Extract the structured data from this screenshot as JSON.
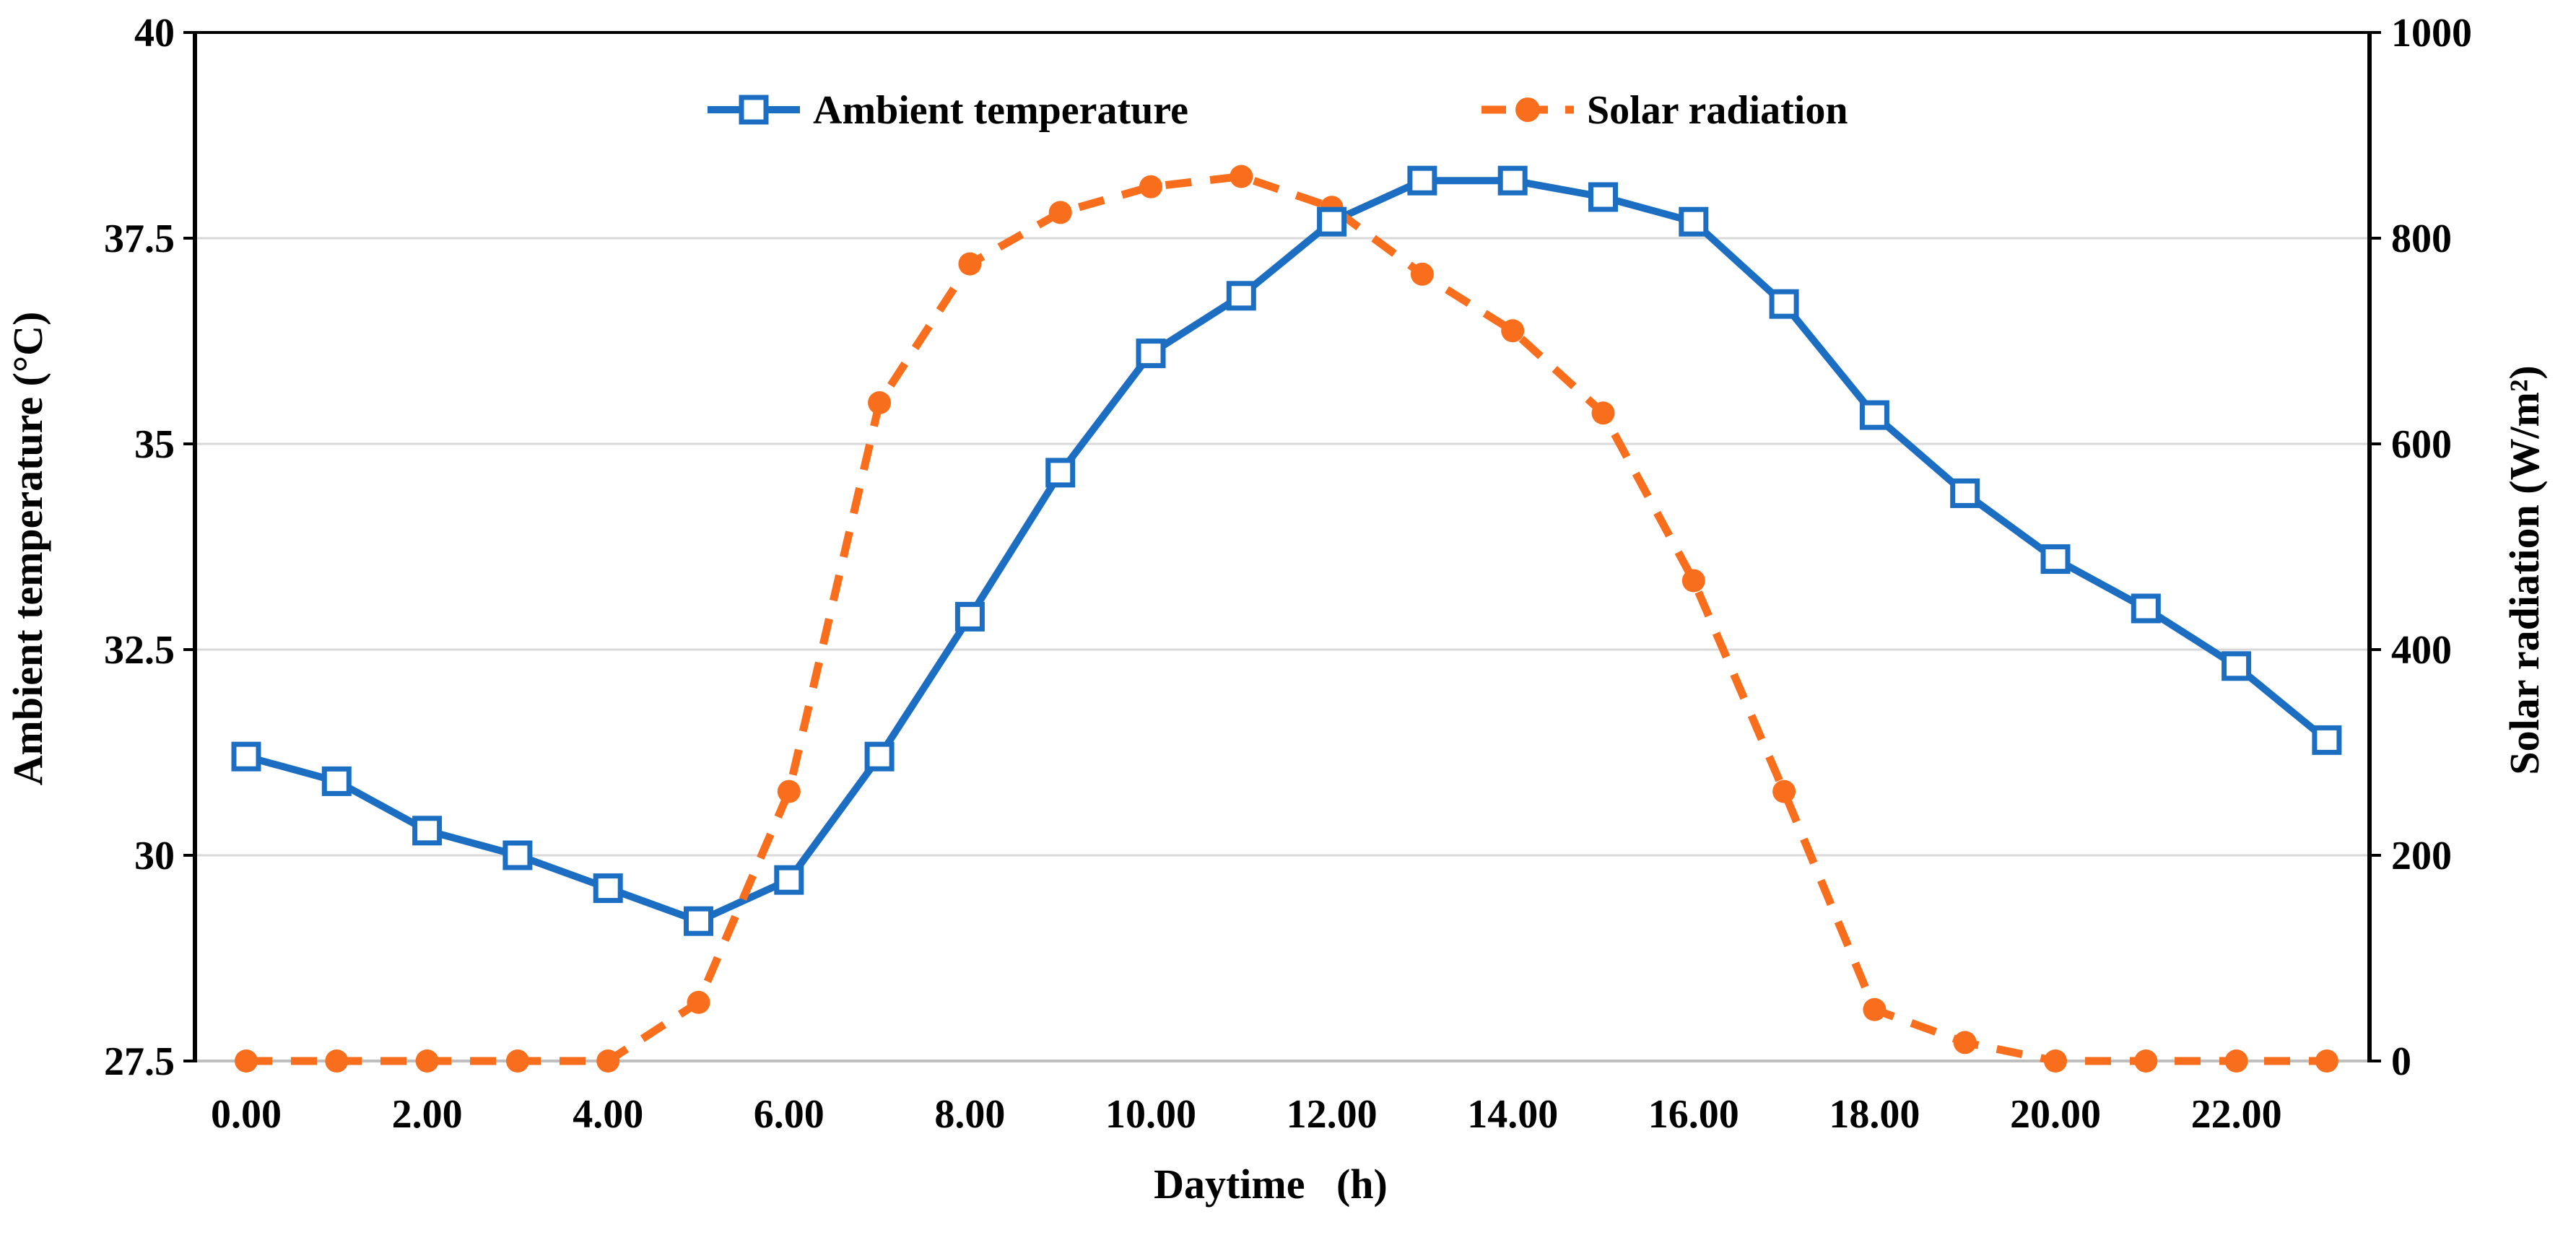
{
  "chart_data": {
    "type": "line",
    "title": "",
    "xlabel": "Daytime   (h)",
    "x": [
      0,
      1,
      2,
      3,
      4,
      5,
      6,
      7,
      8,
      9,
      10,
      11,
      12,
      13,
      14,
      15,
      16,
      17,
      18,
      19,
      20,
      21,
      22,
      23
    ],
    "x_axis": {
      "tick_hours": [
        0,
        2,
        4,
        6,
        8,
        10,
        12,
        14,
        16,
        18,
        20,
        22
      ],
      "tick_labels": [
        "0.00",
        "2.00",
        "4.00",
        "6.00",
        "8.00",
        "10.00",
        "12.00",
        "14.00",
        "16.00",
        "18.00",
        "20.00",
        "22.00"
      ]
    },
    "left_axis": {
      "label": "Ambient temperature (°C)",
      "min": 27.5,
      "max": 40,
      "ticks": [
        40,
        37.5,
        35,
        32.5,
        30,
        27.5
      ],
      "tick_labels": [
        "40",
        "37.5",
        "35",
        "32.5",
        "30",
        "27.5"
      ]
    },
    "right_axis": {
      "label": "Solar radiation (W/m²)",
      "min": 0,
      "max": 1000,
      "ticks": [
        1000,
        800,
        600,
        400,
        200,
        0
      ],
      "tick_labels": [
        "1000",
        "800",
        "600",
        "400",
        "200",
        "0"
      ]
    },
    "grid": true,
    "legend_position": "top",
    "series": [
      {
        "name": "Ambient temperature",
        "axis": "left",
        "color": "#1B6EC2",
        "line_style": "solid",
        "marker": "open-square",
        "values": [
          31.2,
          30.9,
          30.3,
          30.0,
          29.6,
          29.2,
          29.7,
          31.2,
          32.9,
          34.65,
          36.1,
          36.8,
          37.7,
          38.2,
          38.2,
          38.0,
          37.7,
          36.7,
          35.35,
          34.4,
          33.6,
          33.0,
          32.3,
          31.4
        ]
      },
      {
        "name": "Solar radiation",
        "axis": "right",
        "color": "#F96E1C",
        "line_style": "dashed",
        "marker": "filled-circle",
        "values": [
          0,
          0,
          0,
          0,
          0,
          57,
          262,
          640,
          775,
          825,
          850,
          860,
          830,
          765,
          710,
          630,
          467,
          262,
          50,
          18,
          0,
          0,
          0,
          0
        ]
      }
    ]
  },
  "colors": {
    "grid": "#D9D9D9",
    "bottom_axis": "#BFBFBF",
    "axis": "#000000",
    "text": "#000000",
    "background": "#FFFFFF"
  }
}
